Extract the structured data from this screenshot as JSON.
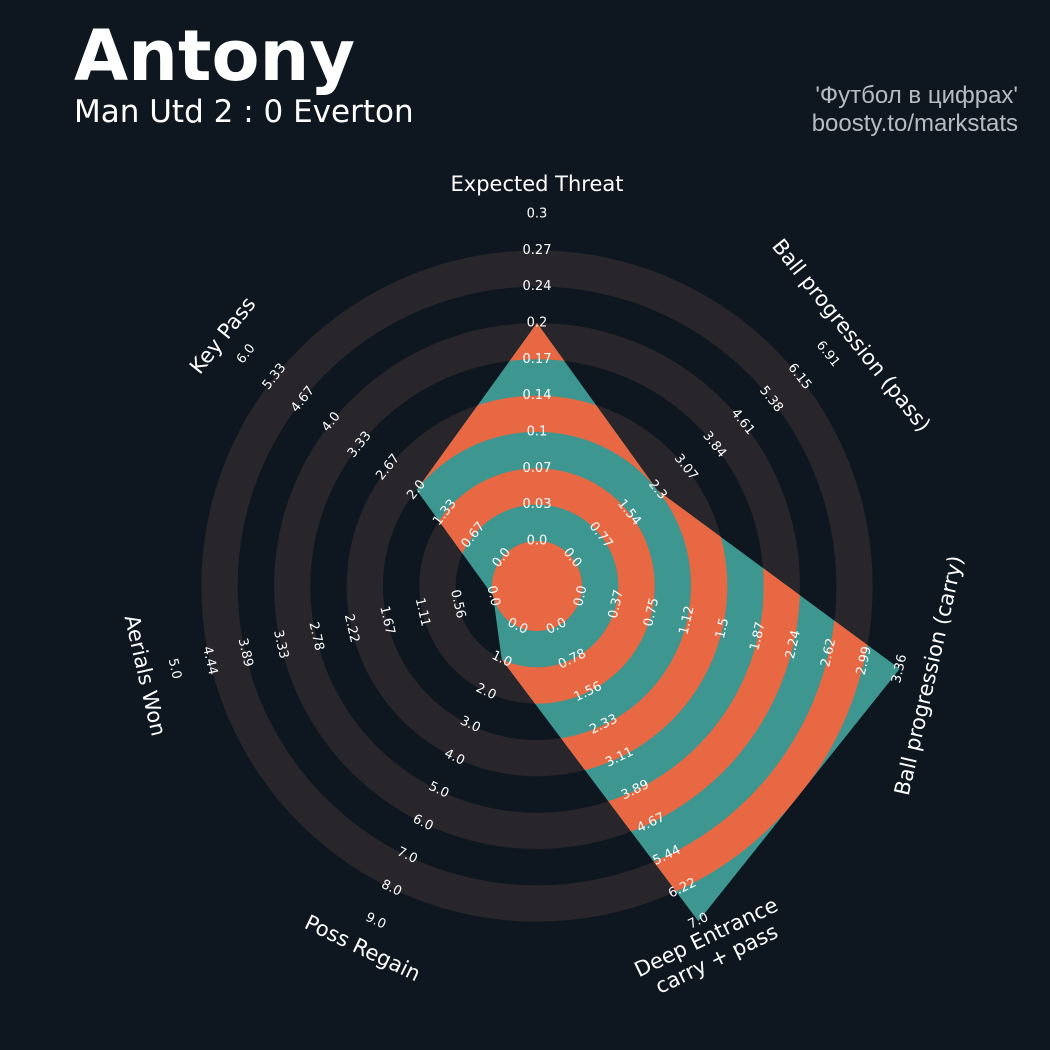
{
  "header": {
    "player_name": "Antony",
    "match": "Man Utd 2 : 0 Everton"
  },
  "credit": {
    "line1": "'Футбол в цифрах'",
    "line2": "boosty.to/markstats"
  },
  "colors": {
    "background": "#0e1720",
    "ring_band": "#28252b",
    "polygon_teal": "#3d9690",
    "polygon_orange": "#e76842",
    "text": "#ffffff",
    "credit": "#b7bcc2"
  },
  "chart_data": {
    "type": "radar",
    "params": [
      {
        "label": [
          "Expected Threat"
        ],
        "value": 0.2,
        "ticks": [
          "0.0",
          "0.03",
          "0.07",
          "0.1",
          "0.14",
          "0.17",
          "0.2",
          "0.24",
          "0.27",
          "0.3"
        ]
      },
      {
        "label": [
          "Ball progression (pass)"
        ],
        "value": 2.3,
        "ticks": [
          "0.0",
          "0.77",
          "1.54",
          "2.3",
          "3.07",
          "3.84",
          "4.61",
          "5.38",
          "6.15",
          "6.91"
        ]
      },
      {
        "label": [
          "Ball progression (carry)"
        ],
        "value": 3.36,
        "ticks": [
          "0.0",
          "0.37",
          "0.75",
          "1.12",
          "1.5",
          "1.87",
          "2.24",
          "2.62",
          "2.99",
          "3.36"
        ]
      },
      {
        "label": [
          "Deep Entrance",
          "carry + pass"
        ],
        "value": 7.0,
        "ticks": [
          "0.0",
          "0.78",
          "1.56",
          "2.33",
          "3.11",
          "3.89",
          "4.67",
          "5.44",
          "6.22",
          "7.0"
        ]
      },
      {
        "label": [
          "Poss Regain"
        ],
        "value": 1.0,
        "ticks": [
          "0.0",
          "1.0",
          "2.0",
          "3.0",
          "4.0",
          "5.0",
          "6.0",
          "7.0",
          "8.0",
          "9.0"
        ]
      },
      {
        "label": [
          "Aerials Won"
        ],
        "value": 0.0,
        "ticks": [
          "0.0",
          "0.56",
          "1.11",
          "1.67",
          "2.22",
          "2.78",
          "3.33",
          "3.89",
          "4.44",
          "5.0"
        ]
      },
      {
        "label": [
          "Key Pass"
        ],
        "value": 2.0,
        "ticks": [
          "0.0",
          "0.67",
          "1.33",
          "2.0",
          "2.67",
          "3.33",
          "4.0",
          "4.67",
          "5.33",
          "6.0"
        ]
      }
    ]
  }
}
